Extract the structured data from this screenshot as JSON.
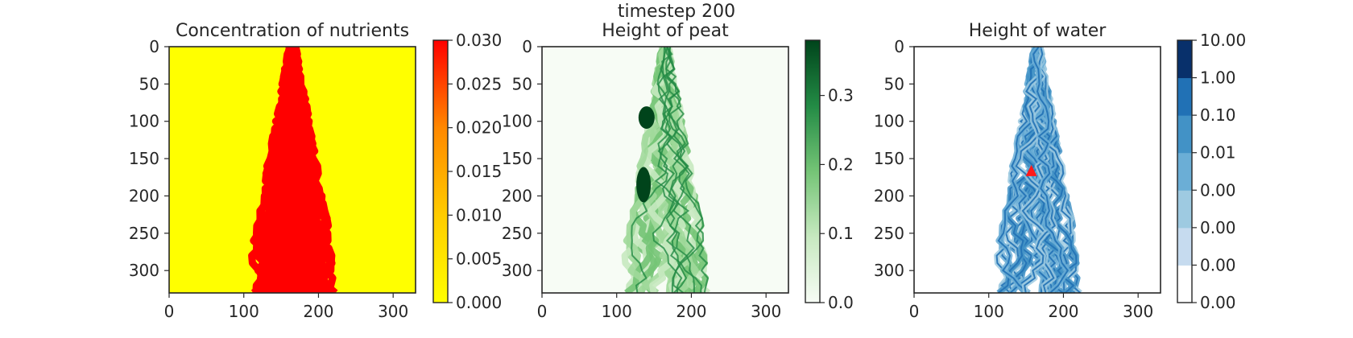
{
  "suptitle": "timestep 200",
  "chart_data": [
    {
      "type": "heatmap",
      "title": "Concentration of nutrients",
      "xlim": [
        0,
        330
      ],
      "ylim": [
        330,
        0
      ],
      "xticks": [
        "0",
        "100",
        "200",
        "300"
      ],
      "yticks": [
        "0",
        "50",
        "100",
        "150",
        "200",
        "250",
        "300"
      ],
      "background_color": "#ffff00",
      "feature_color": "#ff0000",
      "colorbar": {
        "type": "continuous",
        "colors": [
          "#ffff00",
          "#ffcc00",
          "#ff8800",
          "#ff0000"
        ],
        "range": [
          0,
          0.03
        ],
        "ticks": [
          "0.000",
          "0.005",
          "0.010",
          "0.015",
          "0.020",
          "0.025",
          "0.030"
        ]
      }
    },
    {
      "type": "heatmap",
      "title": "Height of peat",
      "xlim": [
        0,
        330
      ],
      "ylim": [
        330,
        0
      ],
      "xticks": [
        "0",
        "100",
        "200",
        "300"
      ],
      "yticks": [
        "0",
        "50",
        "100",
        "150",
        "200",
        "250",
        "300"
      ],
      "background_color": "#f7fcf5",
      "feature_colors": [
        "#c7e9c0",
        "#a1d99b",
        "#74c476",
        "#238b45",
        "#00441b"
      ],
      "colorbar": {
        "type": "continuous",
        "colors": [
          "#f7fcf5",
          "#c7e9c0",
          "#74c476",
          "#238b45",
          "#00441b"
        ],
        "range": [
          0,
          0.38
        ],
        "ticks": [
          "0.0",
          "0.1",
          "0.2",
          "0.3"
        ]
      }
    },
    {
      "type": "heatmap",
      "title": "Height of water",
      "xlim": [
        0,
        330
      ],
      "ylim": [
        330,
        0
      ],
      "xticks": [
        "0",
        "100",
        "200",
        "300"
      ],
      "yticks": [
        "0",
        "50",
        "100",
        "150",
        "200",
        "250",
        "300"
      ],
      "background_color": "#ffffff",
      "feature_colors": [
        "#c6dbef",
        "#9ecae1",
        "#6baed6",
        "#4292c6",
        "#2171b5"
      ],
      "marker": {
        "shape": "triangle",
        "color": "#ff1a1a",
        "x": 157,
        "y": 167
      },
      "colorbar": {
        "type": "discrete",
        "colors": [
          "#ffffff",
          "#c6dbef",
          "#9ecae1",
          "#6baed6",
          "#4292c6",
          "#2171b5",
          "#08306b"
        ],
        "ticks": [
          "0.00",
          "0.00",
          "0.00",
          "0.00",
          "0.01",
          "0.10",
          "1.00",
          "10.00"
        ]
      }
    }
  ]
}
